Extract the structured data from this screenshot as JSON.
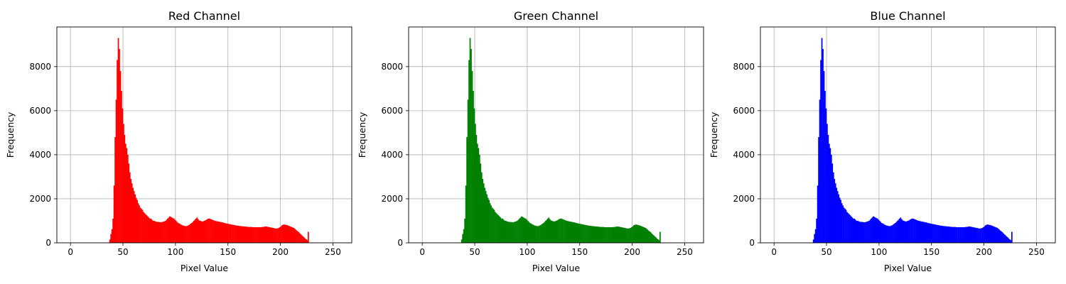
{
  "chart_data": [
    {
      "type": "histogram",
      "title": "Red Channel",
      "xlabel": "Pixel Value",
      "ylabel": "Frequency",
      "color": "#ff0000",
      "grid": true,
      "xlim": [
        -13,
        268
      ],
      "ylim": [
        0,
        9800
      ],
      "xticks": [
        0,
        50,
        100,
        150,
        200,
        250
      ],
      "yticks": [
        0,
        2000,
        4000,
        6000,
        8000
      ],
      "xtick_labels": [
        "0",
        "50",
        "100",
        "150",
        "200",
        "250"
      ],
      "ytick_labels": [
        "0",
        "2000",
        "4000",
        "6000",
        "8000"
      ],
      "bins": {
        "start": 0,
        "width": 1,
        "counts": [
          0,
          0,
          0,
          0,
          0,
          0,
          0,
          0,
          0,
          0,
          0,
          0,
          0,
          0,
          0,
          0,
          0,
          0,
          0,
          0,
          0,
          0,
          0,
          0,
          0,
          0,
          0,
          0,
          0,
          0,
          0,
          0,
          0,
          0,
          0,
          0,
          0,
          150,
          400,
          620,
          1100,
          2600,
          4800,
          6500,
          8300,
          9300,
          8800,
          7800,
          6900,
          6100,
          5400,
          4900,
          4500,
          4300,
          4000,
          3600,
          3200,
          2900,
          2700,
          2500,
          2350,
          2200,
          2050,
          1950,
          1800,
          1700,
          1600,
          1550,
          1500,
          1400,
          1350,
          1300,
          1250,
          1200,
          1150,
          1100,
          1100,
          1050,
          1000,
          1000,
          980,
          960,
          950,
          950,
          940,
          940,
          930,
          950,
          960,
          980,
          1000,
          1050,
          1100,
          1150,
          1200,
          1180,
          1150,
          1120,
          1100,
          1050,
          1000,
          950,
          900,
          880,
          850,
          820,
          800,
          780,
          770,
          760,
          760,
          780,
          800,
          830,
          870,
          900,
          950,
          1000,
          1050,
          1100,
          1150,
          1080,
          1020,
          1000,
          980,
          970,
          980,
          1000,
          1020,
          1050,
          1080,
          1100,
          1100,
          1080,
          1060,
          1040,
          1020,
          1000,
          990,
          980,
          970,
          960,
          950,
          940,
          930,
          920,
          900,
          890,
          880,
          870,
          860,
          850,
          840,
          830,
          820,
          810,
          800,
          790,
          780,
          780,
          770,
          760,
          760,
          750,
          750,
          740,
          740,
          730,
          730,
          720,
          720,
          720,
          720,
          710,
          710,
          710,
          710,
          710,
          710,
          710,
          710,
          710,
          720,
          720,
          730,
          740,
          740,
          730,
          720,
          710,
          700,
          690,
          680,
          670,
          660,
          650,
          650,
          660,
          680,
          710,
          750,
          800,
          820,
          830,
          820,
          810,
          800,
          780,
          760,
          740,
          720,
          700,
          680,
          650,
          600,
          560,
          520,
          480,
          430,
          380,
          340,
          290,
          250,
          200,
          160,
          120,
          500
        ]
      }
    },
    {
      "type": "histogram",
      "title": "Green Channel",
      "xlabel": "Pixel Value",
      "ylabel": "Frequency",
      "color": "#008000",
      "grid": true,
      "xlim": [
        -13,
        268
      ],
      "ylim": [
        0,
        9800
      ],
      "xticks": [
        0,
        50,
        100,
        150,
        200,
        250
      ],
      "yticks": [
        0,
        2000,
        4000,
        6000,
        8000
      ],
      "xtick_labels": [
        "0",
        "50",
        "100",
        "150",
        "200",
        "250"
      ],
      "ytick_labels": [
        "0",
        "2000",
        "4000",
        "6000",
        "8000"
      ],
      "bins": {
        "start": 0,
        "width": 1,
        "counts": [
          0,
          0,
          0,
          0,
          0,
          0,
          0,
          0,
          0,
          0,
          0,
          0,
          0,
          0,
          0,
          0,
          0,
          0,
          0,
          0,
          0,
          0,
          0,
          0,
          0,
          0,
          0,
          0,
          0,
          0,
          0,
          0,
          0,
          0,
          0,
          0,
          0,
          150,
          400,
          620,
          1100,
          2600,
          4800,
          6500,
          8300,
          9300,
          8800,
          7800,
          6900,
          6100,
          5400,
          4900,
          4500,
          4300,
          4000,
          3600,
          3200,
          2900,
          2700,
          2500,
          2350,
          2200,
          2050,
          1950,
          1800,
          1700,
          1600,
          1550,
          1500,
          1400,
          1350,
          1300,
          1250,
          1200,
          1150,
          1100,
          1100,
          1050,
          1000,
          1000,
          980,
          960,
          950,
          950,
          940,
          940,
          930,
          950,
          960,
          980,
          1000,
          1050,
          1100,
          1150,
          1200,
          1180,
          1150,
          1120,
          1100,
          1050,
          1000,
          950,
          900,
          880,
          850,
          820,
          800,
          780,
          770,
          760,
          760,
          780,
          800,
          830,
          870,
          900,
          950,
          1000,
          1050,
          1100,
          1150,
          1080,
          1020,
          1000,
          980,
          970,
          980,
          1000,
          1020,
          1050,
          1080,
          1100,
          1100,
          1080,
          1060,
          1040,
          1020,
          1000,
          990,
          980,
          970,
          960,
          950,
          940,
          930,
          920,
          900,
          890,
          880,
          870,
          860,
          850,
          840,
          830,
          820,
          810,
          800,
          790,
          780,
          780,
          770,
          760,
          760,
          750,
          750,
          740,
          740,
          730,
          730,
          720,
          720,
          720,
          720,
          710,
          710,
          710,
          710,
          710,
          710,
          710,
          710,
          710,
          720,
          720,
          730,
          740,
          740,
          730,
          720,
          710,
          700,
          690,
          680,
          670,
          660,
          650,
          650,
          660,
          680,
          710,
          750,
          800,
          820,
          830,
          820,
          810,
          800,
          780,
          760,
          740,
          720,
          700,
          680,
          650,
          600,
          560,
          520,
          480,
          430,
          380,
          340,
          290,
          250,
          200,
          160,
          120,
          500
        ]
      }
    },
    {
      "type": "histogram",
      "title": "Blue Channel",
      "xlabel": "Pixel Value",
      "ylabel": "Frequency",
      "color": "#0000ff",
      "grid": true,
      "xlim": [
        -13,
        268
      ],
      "ylim": [
        0,
        9800
      ],
      "xticks": [
        0,
        50,
        100,
        150,
        200,
        250
      ],
      "yticks": [
        0,
        2000,
        4000,
        6000,
        8000
      ],
      "xtick_labels": [
        "0",
        "50",
        "100",
        "150",
        "200",
        "250"
      ],
      "ytick_labels": [
        "0",
        "2000",
        "4000",
        "6000",
        "8000"
      ],
      "bins": {
        "start": 0,
        "width": 1,
        "counts": [
          0,
          0,
          0,
          0,
          0,
          0,
          0,
          0,
          0,
          0,
          0,
          0,
          0,
          0,
          0,
          0,
          0,
          0,
          0,
          0,
          0,
          0,
          0,
          0,
          0,
          0,
          0,
          0,
          0,
          0,
          0,
          0,
          0,
          0,
          0,
          0,
          0,
          150,
          400,
          620,
          1100,
          2600,
          4800,
          6500,
          8300,
          9300,
          8800,
          7800,
          6900,
          6100,
          5400,
          4900,
          4500,
          4300,
          4000,
          3600,
          3200,
          2900,
          2700,
          2500,
          2350,
          2200,
          2050,
          1950,
          1800,
          1700,
          1600,
          1550,
          1500,
          1400,
          1350,
          1300,
          1250,
          1200,
          1150,
          1100,
          1100,
          1050,
          1000,
          1000,
          980,
          960,
          950,
          950,
          940,
          940,
          930,
          950,
          960,
          980,
          1000,
          1050,
          1100,
          1150,
          1200,
          1180,
          1150,
          1120,
          1100,
          1050,
          1000,
          950,
          900,
          880,
          850,
          820,
          800,
          780,
          770,
          760,
          760,
          780,
          800,
          830,
          870,
          900,
          950,
          1000,
          1050,
          1100,
          1150,
          1080,
          1020,
          1000,
          980,
          970,
          980,
          1000,
          1020,
          1050,
          1080,
          1100,
          1100,
          1080,
          1060,
          1040,
          1020,
          1000,
          990,
          980,
          970,
          960,
          950,
          940,
          930,
          920,
          900,
          890,
          880,
          870,
          860,
          850,
          840,
          830,
          820,
          810,
          800,
          790,
          780,
          780,
          770,
          760,
          760,
          750,
          750,
          740,
          740,
          730,
          730,
          720,
          720,
          720,
          720,
          710,
          710,
          710,
          710,
          710,
          710,
          710,
          710,
          710,
          720,
          720,
          730,
          740,
          740,
          730,
          720,
          710,
          700,
          690,
          680,
          670,
          660,
          650,
          650,
          660,
          680,
          710,
          750,
          800,
          820,
          830,
          820,
          810,
          800,
          780,
          760,
          740,
          720,
          700,
          680,
          650,
          600,
          560,
          520,
          480,
          430,
          380,
          340,
          290,
          250,
          200,
          160,
          120,
          500
        ]
      }
    }
  ]
}
